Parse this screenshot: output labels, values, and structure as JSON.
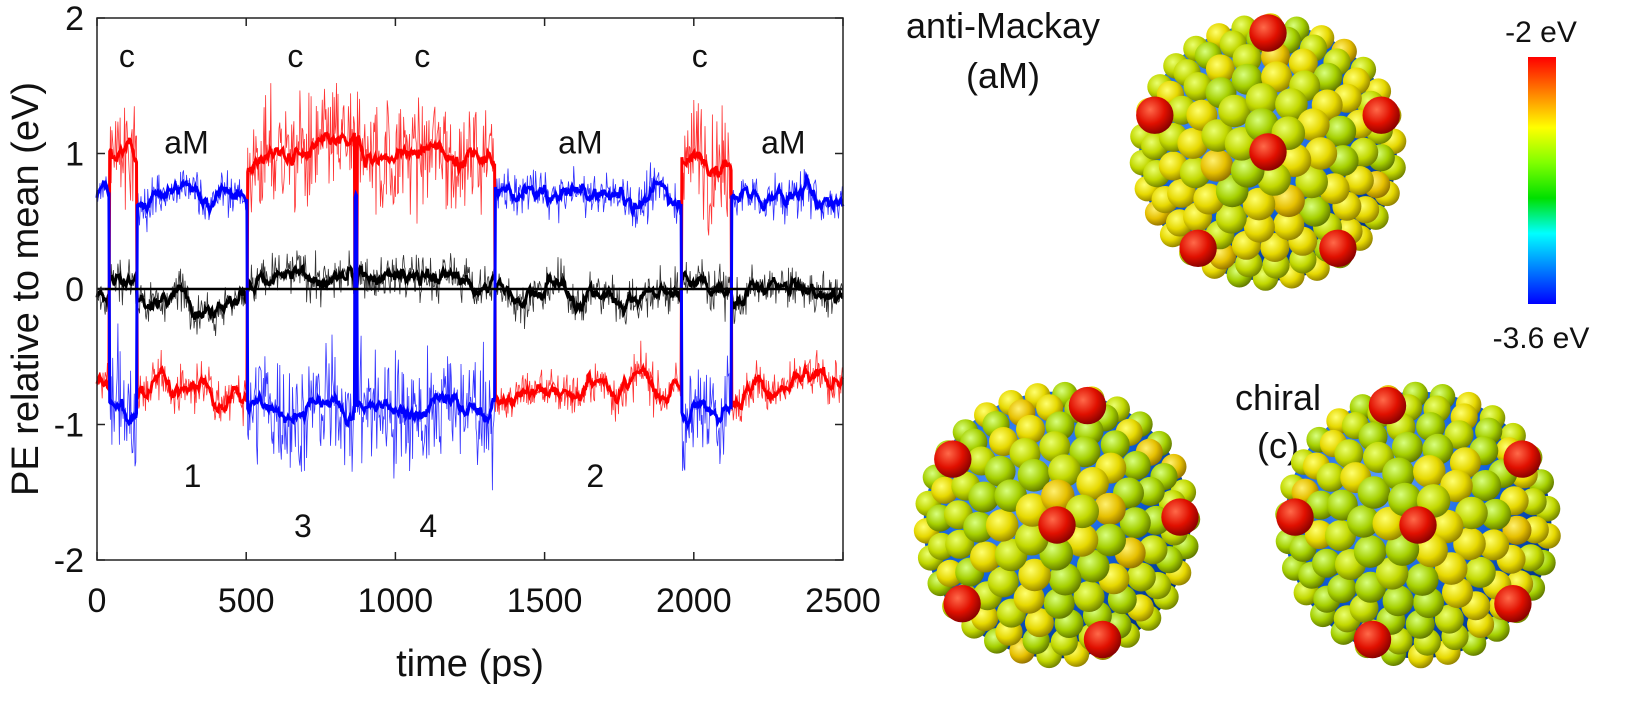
{
  "chart_data": {
    "type": "line",
    "xlabel": "time (ps)",
    "ylabel": "PE relative to mean (eV)",
    "xlim": [
      0,
      2500
    ],
    "ylim": [
      -2,
      2
    ],
    "xticks": [
      "0",
      "500",
      "1000",
      "1500",
      "2000",
      "2500"
    ],
    "yticks": [
      "-2",
      "-1",
      "0",
      "1",
      "2"
    ],
    "grid": false,
    "zero_line": true,
    "state_segments": [
      {
        "state": "aM",
        "start": 0,
        "end": 42
      },
      {
        "state": "c",
        "start": 42,
        "end": 135
      },
      {
        "state": "aM",
        "start": 135,
        "end": 504
      },
      {
        "state": "c",
        "start": 504,
        "end": 863
      },
      {
        "state": "aM",
        "start": 863,
        "end": 872
      },
      {
        "state": "c",
        "start": 872,
        "end": 1333
      },
      {
        "state": "aM",
        "start": 1333,
        "end": 1960
      },
      {
        "state": "c",
        "start": 1960,
        "end": 2126
      },
      {
        "state": "aM",
        "start": 2126,
        "end": 2500
      }
    ],
    "series": [
      {
        "color": "#ff0000",
        "levels": {
          "c": 1.0,
          "aM": -0.72
        }
      },
      {
        "color": "#0000ff",
        "levels": {
          "c": -0.88,
          "aM": 0.68
        }
      },
      {
        "color": "#000000",
        "levels": {
          "c": 0.07,
          "aM": -0.04
        }
      }
    ],
    "annotations": [
      {
        "text": "c",
        "x": 100,
        "y": 1.72
      },
      {
        "text": "c",
        "x": 665,
        "y": 1.72
      },
      {
        "text": "c",
        "x": 1090,
        "y": 1.72
      },
      {
        "text": "c",
        "x": 2020,
        "y": 1.72
      },
      {
        "text": "aM",
        "x": 300,
        "y": 1.08
      },
      {
        "text": "aM",
        "x": 1620,
        "y": 1.08
      },
      {
        "text": "aM",
        "x": 2300,
        "y": 1.08
      },
      {
        "text": "1",
        "x": 320,
        "y": -1.38
      },
      {
        "text": "2",
        "x": 1670,
        "y": -1.38
      },
      {
        "text": "3",
        "x": 690,
        "y": -1.75
      },
      {
        "text": "4",
        "x": 1110,
        "y": -1.75
      }
    ]
  },
  "structures": {
    "aM_label_line1": "anti-Mackay",
    "aM_label_line2": "(aM)",
    "c_label_line1": "chiral",
    "c_label_line2": "(c)"
  },
  "colorbar": {
    "max_label": "-2 eV",
    "min_label": "-3.6 eV",
    "colors": [
      "#ff0000",
      "#ff8000",
      "#ffff00",
      "#80ff00",
      "#00e000",
      "#00ffff",
      "#0080ff",
      "#0000ff"
    ]
  }
}
